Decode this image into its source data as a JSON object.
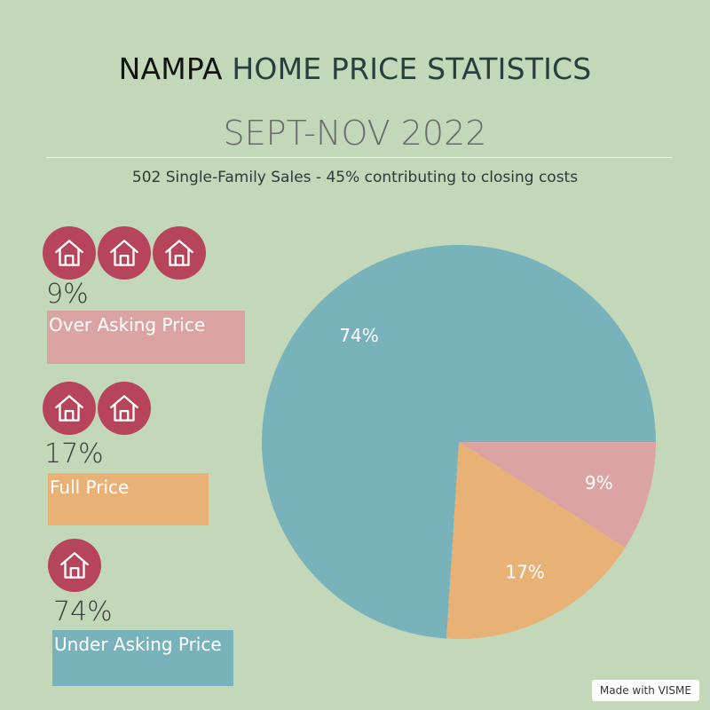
{
  "header": {
    "title_first": "NAMPA",
    "title_rest": "HOME PRICE STATISTICS",
    "subtitle": "SEPT-NOV 2022",
    "summary": "502 Single-Family Sales - 45% contributing to closing costs"
  },
  "legend": {
    "items": [
      {
        "pct": "9%",
        "label": "Over Asking Price",
        "houses": 3,
        "color": "#dca3a3"
      },
      {
        "pct": "17%",
        "label": "Full Price",
        "houses": 2,
        "color": "#e8b277"
      },
      {
        "pct": "74%",
        "label": "Under Asking Price",
        "houses": 1,
        "color": "#78b3bb"
      }
    ],
    "icon": "house-icon",
    "icon_color": "#b6455c"
  },
  "chart_data": {
    "type": "pie",
    "slices": [
      {
        "label": "Over Asking Price",
        "value": 9,
        "display": "9%",
        "color": "#dca3a3"
      },
      {
        "label": "Full Price",
        "value": 17,
        "display": "17%",
        "color": "#e8b277"
      },
      {
        "label": "Under Asking Price",
        "value": 74,
        "display": "74%",
        "color": "#78b3bb"
      }
    ]
  },
  "footer": {
    "badge": "Made with VISME"
  }
}
